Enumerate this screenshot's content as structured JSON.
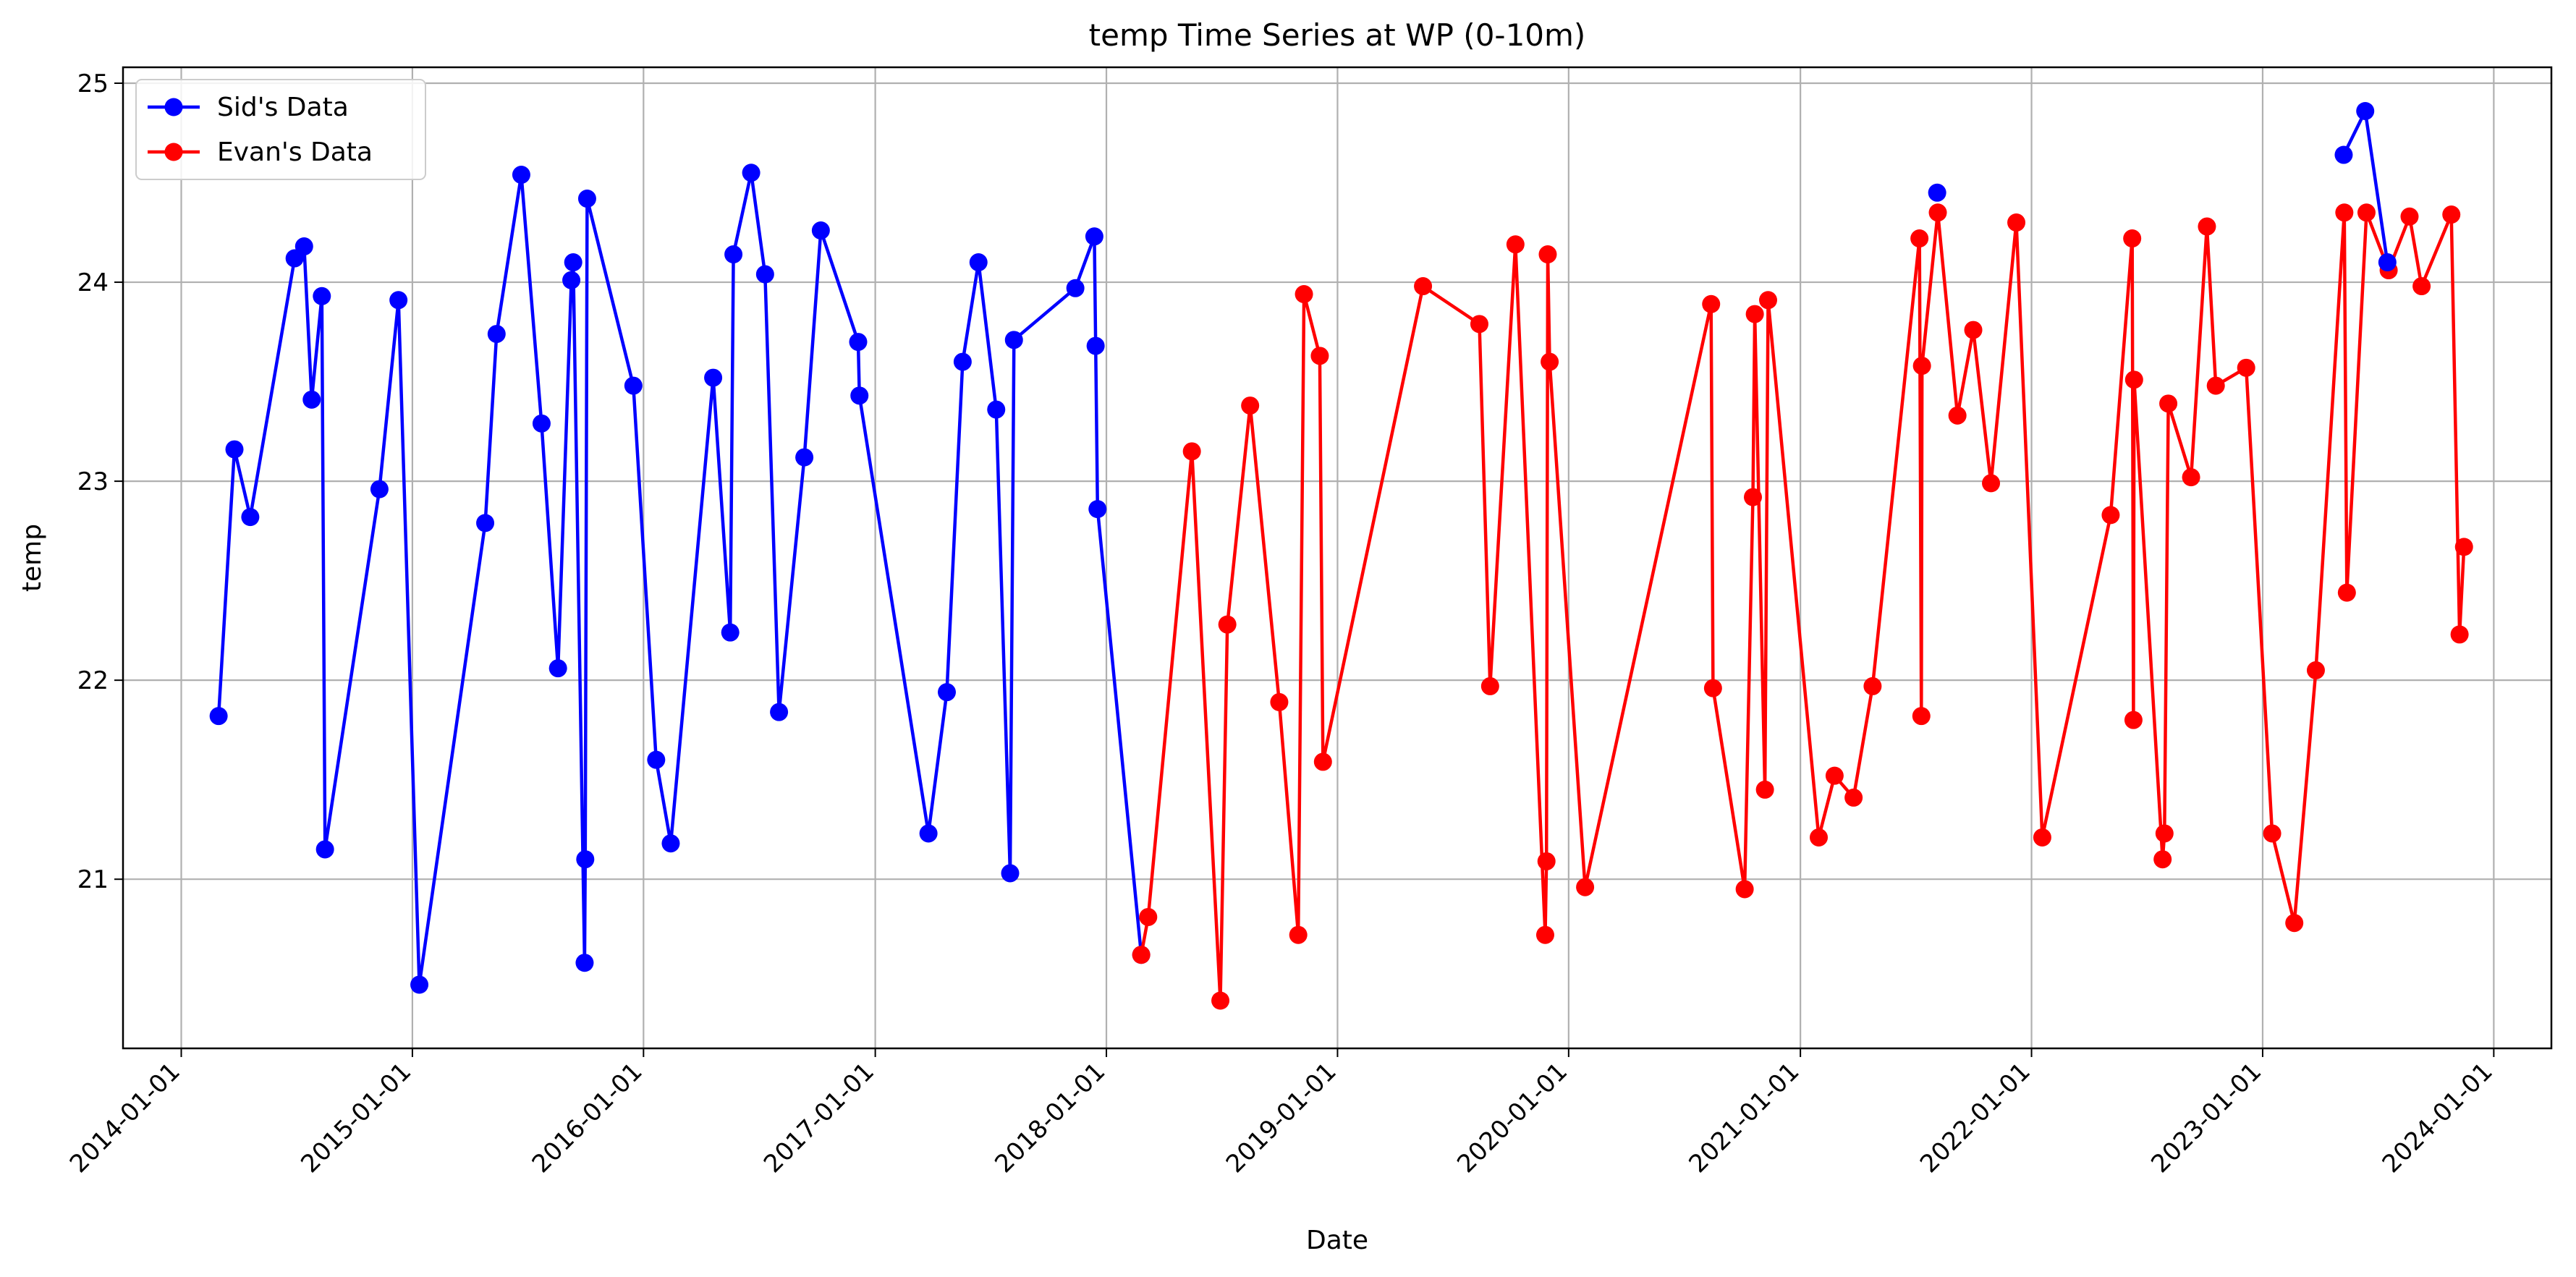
{
  "chart_data": {
    "type": "line",
    "title": "temp Time Series at WP (0-10m)",
    "xlabel": "Date",
    "ylabel": "temp",
    "xlim": [
      "2013-10-01",
      "2024-04-01"
    ],
    "ylim": [
      20.15,
      25.08
    ],
    "x_ticks": [
      "2014-01-01",
      "2015-01-01",
      "2016-01-01",
      "2017-01-01",
      "2018-01-01",
      "2019-01-01",
      "2020-01-01",
      "2021-01-01",
      "2022-01-01",
      "2023-01-01",
      "2024-01-01"
    ],
    "y_ticks": [
      21,
      22,
      23,
      24,
      25
    ],
    "grid": true,
    "legend_position": "top-left",
    "series": [
      {
        "name": "Sid's Data",
        "color": "#0000ff",
        "points": [
          [
            "2014-03-01",
            21.82
          ],
          [
            "2014-03-26",
            23.16
          ],
          [
            "2014-04-20",
            22.82
          ],
          [
            "2014-06-29",
            24.12
          ],
          [
            "2014-07-14",
            24.18
          ],
          [
            "2014-07-26",
            23.41
          ],
          [
            "2014-08-11",
            23.93
          ],
          [
            "2014-08-16",
            21.15
          ],
          [
            "2014-11-10",
            22.96
          ],
          [
            "2014-12-10",
            23.91
          ],
          [
            "2015-01-12",
            20.47
          ],
          [
            "2015-04-26",
            22.79
          ],
          [
            "2015-05-14",
            23.74
          ],
          [
            "2015-06-22",
            24.54
          ],
          [
            "2015-07-24",
            23.29
          ],
          [
            "2015-08-19",
            22.06
          ],
          [
            "2015-09-09",
            24.01
          ],
          [
            "2015-09-12",
            24.1
          ],
          [
            "2015-09-30",
            20.58
          ],
          [
            "2015-10-01",
            21.1
          ],
          [
            "2015-10-04",
            24.42
          ],
          [
            "2015-12-16",
            23.48
          ],
          [
            "2016-01-21",
            21.6
          ],
          [
            "2016-02-13",
            21.18
          ],
          [
            "2016-04-20",
            23.52
          ],
          [
            "2016-05-17",
            22.24
          ],
          [
            "2016-05-22",
            24.14
          ],
          [
            "2016-06-19",
            24.55
          ],
          [
            "2016-07-11",
            24.04
          ],
          [
            "2016-08-02",
            21.84
          ],
          [
            "2016-09-11",
            23.12
          ],
          [
            "2016-10-07",
            24.26
          ],
          [
            "2016-12-05",
            23.7
          ],
          [
            "2016-12-07",
            23.43
          ],
          [
            "2017-03-26",
            21.23
          ],
          [
            "2017-04-24",
            21.94
          ],
          [
            "2017-05-19",
            23.6
          ],
          [
            "2017-06-13",
            24.1
          ],
          [
            "2017-07-11",
            23.36
          ],
          [
            "2017-08-02",
            21.03
          ],
          [
            "2017-08-08",
            23.71
          ],
          [
            "2017-11-13",
            23.97
          ],
          [
            "2017-12-13",
            24.23
          ],
          [
            "2017-12-15",
            23.68
          ],
          [
            "2017-12-18",
            22.86
          ],
          [
            "2018-02-25",
            20.62
          ]
        ]
      },
      {
        "name": "Evan's Data",
        "color": "#ff0000",
        "points": [
          [
            "2018-02-25",
            20.62
          ],
          [
            "2018-03-08",
            20.81
          ],
          [
            "2018-05-16",
            23.15
          ],
          [
            "2018-06-30",
            20.39
          ],
          [
            "2018-07-11",
            22.28
          ],
          [
            "2018-08-16",
            23.38
          ],
          [
            "2018-10-01",
            21.89
          ],
          [
            "2018-10-31",
            20.72
          ],
          [
            "2018-11-09",
            23.94
          ],
          [
            "2018-12-04",
            23.63
          ],
          [
            "2018-12-09",
            21.59
          ],
          [
            "2019-05-16",
            23.98
          ],
          [
            "2019-08-13",
            23.79
          ],
          [
            "2019-08-30",
            21.97
          ],
          [
            "2019-10-09",
            24.19
          ],
          [
            "2019-11-25",
            20.72
          ],
          [
            "2019-11-27",
            21.09
          ],
          [
            "2019-11-29",
            24.14
          ],
          [
            "2019-12-02",
            23.6
          ],
          [
            "2020-01-27",
            20.96
          ],
          [
            "2020-08-13",
            23.89
          ],
          [
            "2020-08-16",
            21.96
          ],
          [
            "2020-10-05",
            20.95
          ],
          [
            "2020-10-18",
            22.92
          ],
          [
            "2020-10-21",
            23.84
          ],
          [
            "2020-11-06",
            21.45
          ],
          [
            "2020-11-11",
            23.91
          ],
          [
            "2021-01-30",
            21.21
          ],
          [
            "2021-02-24",
            21.52
          ],
          [
            "2021-03-26",
            21.41
          ],
          [
            "2021-04-25",
            21.97
          ],
          [
            "2021-07-08",
            24.22
          ],
          [
            "2021-07-11",
            21.82
          ],
          [
            "2021-07-12",
            23.58
          ],
          [
            "2021-08-06",
            24.35
          ],
          [
            "2021-09-06",
            23.33
          ],
          [
            "2021-10-01",
            23.76
          ],
          [
            "2021-10-29",
            22.99
          ],
          [
            "2021-12-08",
            24.3
          ],
          [
            "2022-01-18",
            21.21
          ],
          [
            "2022-05-06",
            22.83
          ],
          [
            "2022-06-09",
            24.22
          ],
          [
            "2022-06-11",
            21.8
          ],
          [
            "2022-06-12",
            23.51
          ],
          [
            "2022-07-27",
            21.1
          ],
          [
            "2022-07-30",
            21.23
          ],
          [
            "2022-08-05",
            23.39
          ],
          [
            "2022-09-10",
            23.02
          ],
          [
            "2022-10-05",
            24.28
          ],
          [
            "2022-10-19",
            23.48
          ],
          [
            "2022-12-06",
            23.57
          ],
          [
            "2023-01-16",
            21.23
          ],
          [
            "2023-02-20",
            20.78
          ],
          [
            "2023-03-26",
            22.05
          ],
          [
            "2023-05-10",
            24.35
          ],
          [
            "2023-05-14",
            22.44
          ],
          [
            "2023-06-14",
            24.35
          ],
          [
            "2023-07-19",
            24.06
          ],
          [
            "2023-08-21",
            24.33
          ],
          [
            "2023-09-09",
            23.98
          ],
          [
            "2023-10-26",
            24.34
          ],
          [
            "2023-11-08",
            22.23
          ],
          [
            "2023-11-15",
            22.67
          ]
        ]
      },
      {
        "name": "",
        "color": "#0000ff",
        "points": [
          [
            "2021-08-05",
            24.45
          ]
        ]
      },
      {
        "name": "",
        "color": "#0000ff",
        "points": [
          [
            "2023-05-09",
            24.64
          ],
          [
            "2023-06-12",
            24.86
          ],
          [
            "2023-07-17",
            24.1
          ]
        ]
      }
    ]
  }
}
